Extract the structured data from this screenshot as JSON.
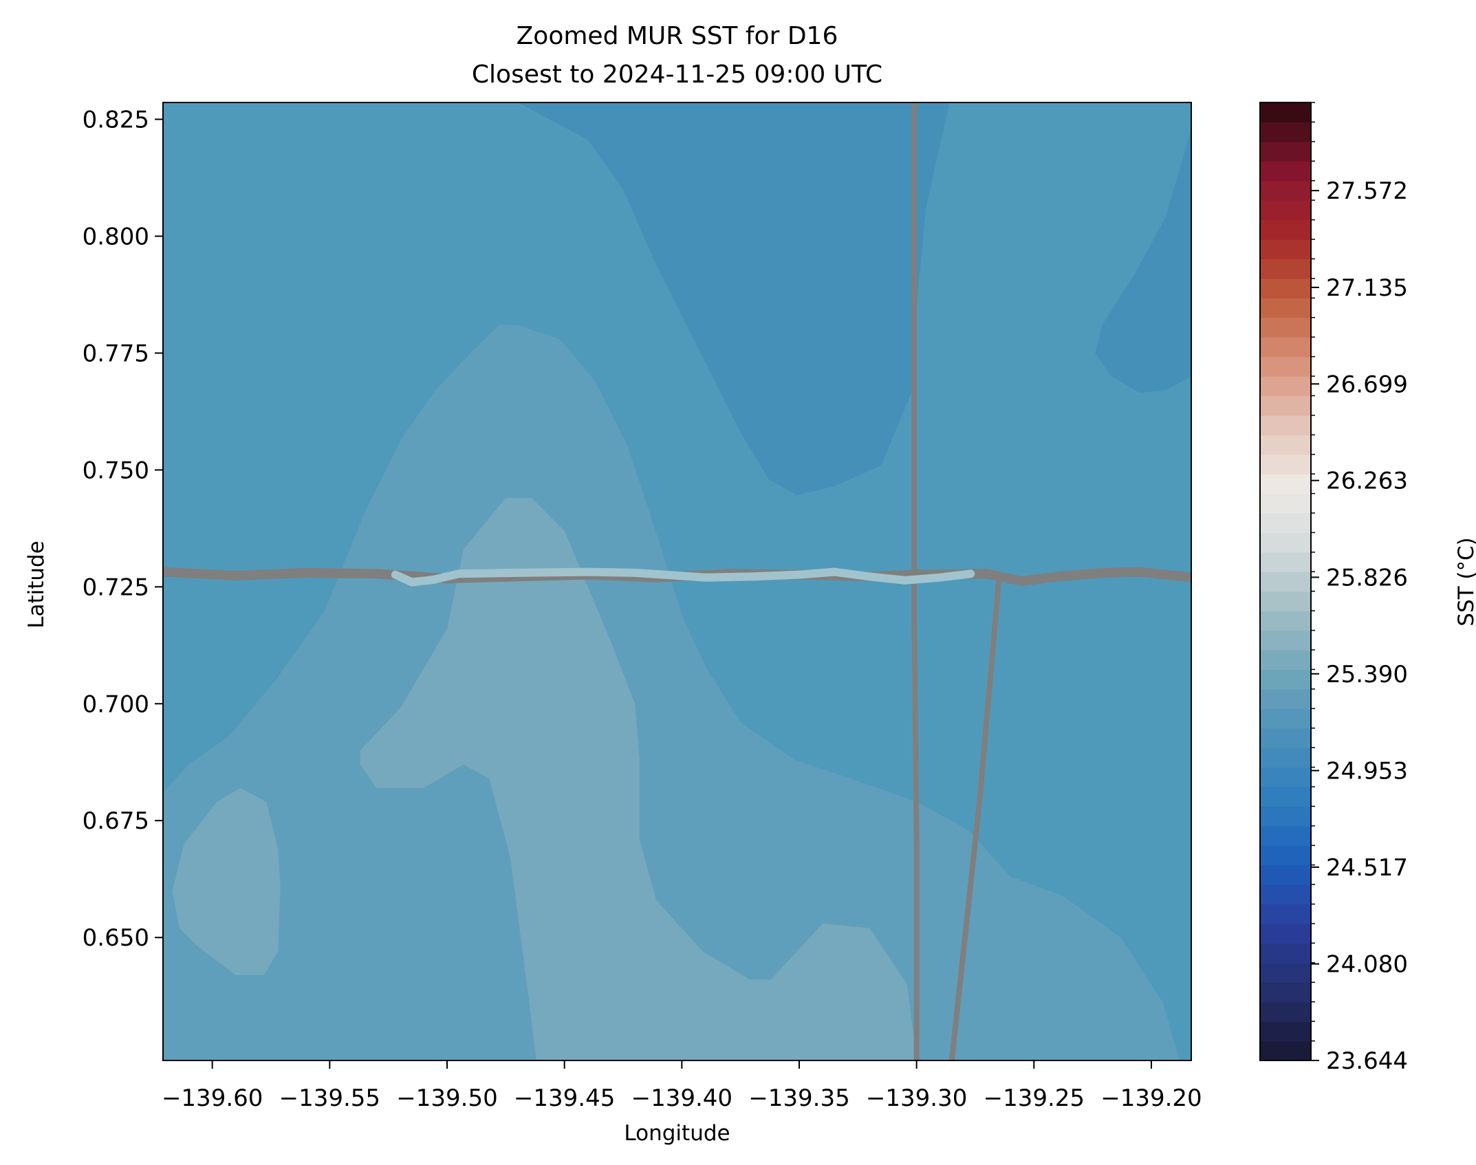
{
  "chart_data": {
    "type": "heatmap",
    "title": "Zoomed MUR SST for D16",
    "subtitle": "Closest to 2024-11-25 09:00 UTC",
    "xlabel": "Longitude",
    "ylabel": "Latitude",
    "xlim": [
      -139.621,
      -139.183
    ],
    "ylim": [
      0.6237,
      0.8286
    ],
    "x_ticks": [
      -139.6,
      -139.55,
      -139.5,
      -139.45,
      -139.4,
      -139.35,
      -139.3,
      -139.25,
      -139.2
    ],
    "x_tick_labels": [
      "−139.60",
      "−139.55",
      "−139.50",
      "−139.45",
      "−139.40",
      "−139.35",
      "−139.30",
      "−139.25",
      "−139.20"
    ],
    "y_ticks": [
      0.65,
      0.675,
      0.7,
      0.725,
      0.75,
      0.775,
      0.8,
      0.825
    ],
    "y_tick_labels": [
      "0.650",
      "0.675",
      "0.700",
      "0.725",
      "0.750",
      "0.775",
      "0.800",
      "0.825"
    ],
    "colorbar": {
      "label": "SST (°C)",
      "vmin": 23.644,
      "vmax": 27.97,
      "levels": 49,
      "tick_values": [
        23.644,
        24.08,
        24.517,
        24.953,
        25.39,
        25.826,
        26.263,
        26.699,
        27.135,
        27.572
      ],
      "tick_labels": [
        "23.644",
        "24.080",
        "24.517",
        "24.953",
        "25.390",
        "25.826",
        "26.263",
        "26.699",
        "27.135",
        "27.572"
      ],
      "colormap_stops": [
        "#1a1a3a",
        "#25306e",
        "#2a3f9e",
        "#1d5fba",
        "#2f7dbe",
        "#4a90ba",
        "#6ea5ba",
        "#9fbcc4",
        "#d2dada",
        "#eeeae6",
        "#e4c4b8",
        "#d8917a",
        "#c0603e",
        "#a6282a",
        "#8a1630",
        "#3a0a14"
      ]
    },
    "contours": [
      {
        "sst": 24.92,
        "color": "#4590b9",
        "polygons": [
          [
            [
              -139.47,
              0.8286
            ],
            [
              -139.44,
              0.8206
            ],
            [
              -139.425,
              0.81
            ],
            [
              -139.412,
              0.795
            ],
            [
              -139.4,
              0.783
            ],
            [
              -139.39,
              0.773
            ],
            [
              -139.375,
              0.758
            ],
            [
              -139.363,
              0.748
            ],
            [
              -139.351,
              0.7446
            ],
            [
              -139.335,
              0.7465
            ],
            [
              -139.315,
              0.751
            ],
            [
              -139.301,
              0.768
            ],
            [
              -139.3,
              0.785
            ],
            [
              -139.296,
              0.806
            ],
            [
              -139.286,
              0.8286
            ]
          ],
          [
            [
              -139.183,
              0.823
            ],
            [
              -139.194,
              0.804
            ],
            [
              -139.207,
              0.792
            ],
            [
              -139.221,
              0.781
            ],
            [
              -139.224,
              0.775
            ],
            [
              -139.217,
              0.77
            ],
            [
              -139.205,
              0.7665
            ],
            [
              -139.194,
              0.767
            ],
            [
              -139.183,
              0.77
            ]
          ]
        ]
      },
      {
        "sst": 25.03,
        "color": "#5f9fbb",
        "polygons": [
          [
            [
              -139.621,
              0.681
            ],
            [
              -139.61,
              0.687
            ],
            [
              -139.593,
              0.693
            ],
            [
              -139.573,
              0.705
            ],
            [
              -139.552,
              0.72
            ],
            [
              -139.535,
              0.741
            ],
            [
              -139.519,
              0.757
            ],
            [
              -139.505,
              0.767
            ],
            [
              -139.49,
              0.775
            ],
            [
              -139.478,
              0.781
            ],
            [
              -139.47,
              0.781
            ],
            [
              -139.452,
              0.778
            ],
            [
              -139.437,
              0.769
            ],
            [
              -139.423,
              0.755
            ],
            [
              -139.408,
              0.732
            ],
            [
              -139.4,
              0.719
            ],
            [
              -139.39,
              0.708
            ],
            [
              -139.375,
              0.696
            ],
            [
              -139.352,
              0.688
            ],
            [
              -139.328,
              0.684
            ],
            [
              -139.3,
              0.679
            ],
            [
              -139.278,
              0.673
            ],
            [
              -139.26,
              0.663
            ],
            [
              -139.238,
              0.659
            ],
            [
              -139.213,
              0.65
            ],
            [
              -139.195,
              0.636
            ],
            [
              -139.188,
              0.6237
            ],
            [
              -139.621,
              0.6237
            ]
          ]
        ]
      },
      {
        "sst": 25.13,
        "color": "#76a9bd",
        "polygons": [
          [
            [
              -139.537,
              0.69
            ],
            [
              -139.52,
              0.699
            ],
            [
              -139.5,
              0.716
            ],
            [
              -139.493,
              0.733
            ],
            [
              -139.475,
              0.744
            ],
            [
              -139.464,
              0.744
            ],
            [
              -139.45,
              0.737
            ],
            [
              -139.43,
              0.713
            ],
            [
              -139.42,
              0.7
            ],
            [
              -139.418,
              0.688
            ],
            [
              -139.418,
              0.671
            ],
            [
              -139.411,
              0.658
            ],
            [
              -139.391,
              0.647
            ],
            [
              -139.371,
              0.641
            ],
            [
              -139.362,
              0.641
            ],
            [
              -139.34,
              0.653
            ],
            [
              -139.32,
              0.652
            ],
            [
              -139.304,
              0.64
            ],
            [
              -139.3,
              0.6237
            ],
            [
              -139.462,
              0.6237
            ],
            [
              -139.465,
              0.636
            ],
            [
              -139.473,
              0.667
            ],
            [
              -139.482,
              0.684
            ],
            [
              -139.493,
              0.687
            ],
            [
              -139.51,
              0.682
            ],
            [
              -139.53,
              0.682
            ],
            [
              -139.537,
              0.687
            ]
          ],
          [
            [
              -139.617,
              0.66
            ],
            [
              -139.612,
              0.67
            ],
            [
              -139.598,
              0.679
            ],
            [
              -139.588,
              0.682
            ],
            [
              -139.577,
              0.679
            ],
            [
              -139.572,
              0.669
            ],
            [
              -139.571,
              0.661
            ],
            [
              -139.572,
              0.647
            ],
            [
              -139.578,
              0.642
            ],
            [
              -139.59,
              0.642
            ],
            [
              -139.606,
              0.648
            ],
            [
              -139.614,
              0.652
            ]
          ]
        ]
      }
    ],
    "tracks": [
      {
        "color": "#7f7f7f",
        "points": [
          [
            -139.621,
            0.7282
          ],
          [
            -139.59,
            0.7274
          ],
          [
            -139.56,
            0.728
          ],
          [
            -139.53,
            0.7278
          ],
          [
            -139.5,
            0.7268
          ],
          [
            -139.47,
            0.7272
          ],
          [
            -139.44,
            0.7276
          ],
          [
            -139.41,
            0.727
          ],
          [
            -139.38,
            0.7278
          ],
          [
            -139.35,
            0.7276
          ],
          [
            -139.32,
            0.7272
          ],
          [
            -139.3,
            0.7276
          ],
          [
            -139.27,
            0.7278
          ],
          [
            -139.255,
            0.7262
          ],
          [
            -139.24,
            0.7272
          ],
          [
            -139.22,
            0.728
          ],
          [
            -139.205,
            0.7282
          ],
          [
            -139.183,
            0.727
          ]
        ]
      },
      {
        "color": "#7f7f7f",
        "points": [
          [
            -139.301,
            0.8286
          ],
          [
            -139.301,
            0.77
          ],
          [
            -139.301,
            0.72
          ],
          [
            -139.3,
            0.67
          ],
          [
            -139.3,
            0.6237
          ]
        ]
      },
      {
        "color": "#7f7f7f",
        "points": [
          [
            -139.265,
            0.7262
          ],
          [
            -139.273,
            0.68
          ],
          [
            -139.285,
            0.6237
          ]
        ]
      },
      {
        "color": "#a1c3ce",
        "points": [
          [
            -139.522,
            0.7276
          ],
          [
            -139.515,
            0.726
          ],
          [
            -139.506,
            0.7265
          ],
          [
            -139.495,
            0.7278
          ],
          [
            -139.47,
            0.728
          ],
          [
            -139.44,
            0.7282
          ],
          [
            -139.42,
            0.728
          ],
          [
            -139.39,
            0.727
          ],
          [
            -139.37,
            0.7272
          ],
          [
            -139.35,
            0.7276
          ],
          [
            -139.335,
            0.7282
          ],
          [
            -139.32,
            0.7272
          ],
          [
            -139.305,
            0.7264
          ],
          [
            -139.29,
            0.727
          ],
          [
            -139.277,
            0.7278
          ]
        ]
      }
    ]
  }
}
